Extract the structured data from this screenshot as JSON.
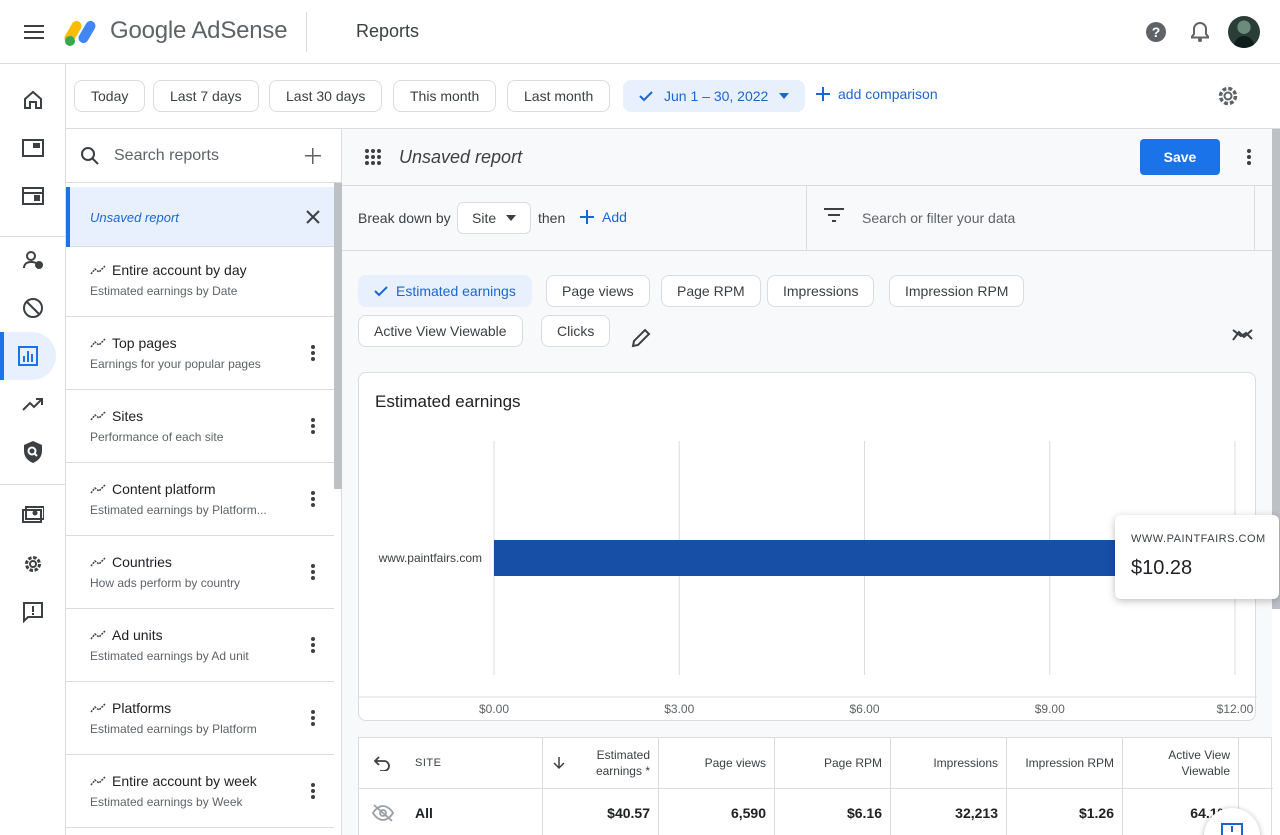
{
  "header": {
    "brand_google": "Google",
    "brand_product": "AdSense",
    "page_title": "Reports"
  },
  "date_chips": [
    "Today",
    "Last 7 days",
    "Last 30 days",
    "This month",
    "Last month"
  ],
  "date_range": "Jun 1 – 30, 2022",
  "add_comparison": "add comparison",
  "sidebar_reports": {
    "search_placeholder": "Search reports",
    "active": "Unsaved report",
    "items": [
      {
        "name": "Entire account by day",
        "sub": "Estimated earnings by Date"
      },
      {
        "name": "Top pages",
        "sub": "Earnings for your popular pages"
      },
      {
        "name": "Sites",
        "sub": "Performance of each site"
      },
      {
        "name": "Content platform",
        "sub": "Estimated earnings by Platform..."
      },
      {
        "name": "Countries",
        "sub": "How ads perform by country"
      },
      {
        "name": "Ad units",
        "sub": "Estimated earnings by Ad unit"
      },
      {
        "name": "Platforms",
        "sub": "Estimated earnings by Platform"
      },
      {
        "name": "Entire account by week",
        "sub": "Estimated earnings by Week"
      }
    ]
  },
  "report": {
    "name": "Unsaved report",
    "save_label": "Save",
    "breakdown_label": "Break down by",
    "breakdown_value": "Site",
    "then_label": "then",
    "add_label": "Add",
    "filter_placeholder": "Search or filter your data"
  },
  "metrics": {
    "selected": "Estimated earnings",
    "others": [
      "Page views",
      "Page RPM",
      "Impressions",
      "Impression RPM",
      "Active View Viewable",
      "Clicks"
    ]
  },
  "chart_data": {
    "type": "bar",
    "orientation": "horizontal",
    "title": "Estimated earnings",
    "categories": [
      "www.paintfairs.com"
    ],
    "values": [
      10.28
    ],
    "xlim": [
      0,
      12
    ],
    "x_ticks": [
      "$0.00",
      "$3.00",
      "$6.00",
      "$9.00",
      "$12.00"
    ],
    "grid": true,
    "bar_color": "#174ea6",
    "tooltip": {
      "label": "WWW.PAINTFAIRS.COM",
      "value": "$10.28"
    }
  },
  "table": {
    "columns": [
      "SITE",
      "Estimated earnings *",
      "Page views",
      "Page RPM",
      "Impressions",
      "Impression RPM",
      "Active View Viewable"
    ],
    "total_row": {
      "site": "All",
      "estimated_earnings": "$40.57",
      "page_views": "6,590",
      "page_rpm": "$6.16",
      "impressions": "32,213",
      "impression_rpm": "$1.26",
      "active_view_viewable": "64.1%"
    }
  },
  "rail_icons": [
    "home-icon",
    "ads-icon",
    "sites-icon",
    "blocking-icon",
    "block-icon",
    "reports-icon",
    "optimization-icon",
    "policy-icon",
    "payments-icon",
    "settings-icon",
    "feedback-icon"
  ],
  "colors": {
    "accent": "#1a73e8",
    "selected_bg": "#e8f0fe",
    "bar": "#174ea6"
  }
}
